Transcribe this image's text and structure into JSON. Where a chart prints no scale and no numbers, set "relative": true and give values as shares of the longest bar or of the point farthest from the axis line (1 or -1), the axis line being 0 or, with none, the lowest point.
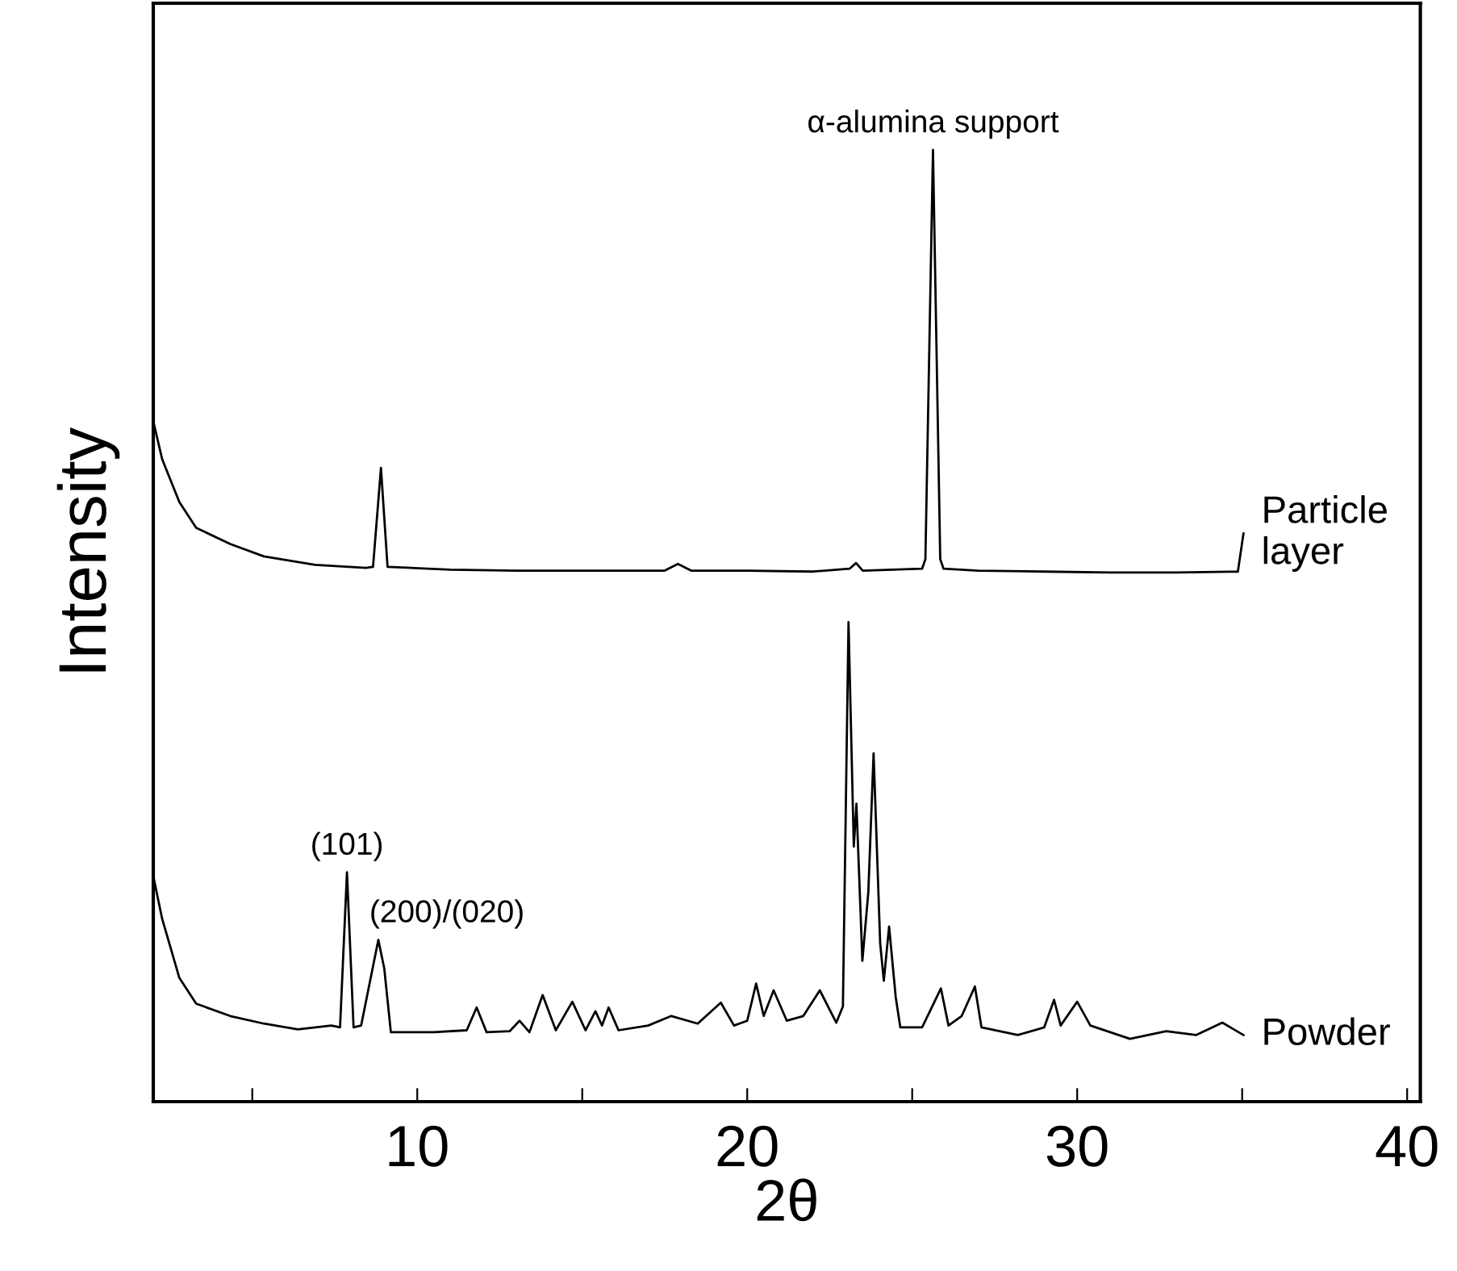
{
  "chart_data": {
    "type": "line",
    "relative": true,
    "xlabel": "2θ",
    "ylabel": "Intensity",
    "xlim": [
      2,
      40.4
    ],
    "xticks": [
      {
        "value": 5,
        "label": null
      },
      10,
      {
        "value": 15,
        "label": null
      },
      20,
      {
        "value": 25,
        "label": null
      },
      30,
      {
        "value": 35,
        "label": null
      },
      40
    ],
    "tick_labels": "x",
    "grid": false,
    "marker": "none",
    "line_style": "solid",
    "series": [
      {
        "name": "Particle\nlayer",
        "color": "#000000",
        "x": [
          2.0,
          2.27,
          2.79,
          3.3,
          4.33,
          5.35,
          6.9,
          8.44,
          8.66,
          8.9,
          9.1,
          11.0,
          13.0,
          15.0,
          17.5,
          17.9,
          18.3,
          20.0,
          22.0,
          23.1,
          23.3,
          23.5,
          25.3,
          25.4,
          25.63,
          25.85,
          25.95,
          27.0,
          29.0,
          31.0,
          33.0,
          34.87,
          35.04
        ],
        "values": [
          0.715,
          0.675,
          0.63,
          0.603,
          0.586,
          0.573,
          0.564,
          0.561,
          0.562,
          0.666,
          0.562,
          0.559,
          0.558,
          0.558,
          0.558,
          0.565,
          0.558,
          0.558,
          0.557,
          0.56,
          0.566,
          0.558,
          0.56,
          0.57,
          1.0,
          0.57,
          0.56,
          0.558,
          0.557,
          0.556,
          0.556,
          0.557,
          0.597
        ]
      },
      {
        "name": "Powder",
        "color": "#000000",
        "x": [
          2.0,
          2.27,
          2.79,
          3.3,
          4.33,
          5.35,
          6.38,
          7.4,
          7.66,
          7.87,
          8.07,
          8.3,
          8.82,
          9.0,
          9.2,
          10.5,
          11.5,
          11.8,
          12.1,
          12.8,
          13.1,
          13.4,
          13.8,
          14.2,
          14.7,
          15.1,
          15.4,
          15.6,
          15.8,
          16.1,
          17.0,
          17.7,
          18.5,
          19.2,
          19.6,
          20.0,
          20.27,
          20.5,
          20.8,
          21.2,
          21.7,
          22.2,
          22.7,
          22.9,
          23.07,
          23.23,
          23.31,
          23.49,
          23.67,
          23.83,
          24.03,
          24.14,
          24.3,
          24.5,
          24.64,
          25.3,
          25.87,
          26.1,
          26.5,
          26.9,
          27.1,
          28.2,
          29.0,
          29.3,
          29.5,
          30.0,
          30.4,
          31.6,
          32.7,
          33.6,
          34.4,
          35.04
        ],
        "values": [
          0.237,
          0.192,
          0.13,
          0.103,
          0.09,
          0.082,
          0.076,
          0.08,
          0.078,
          0.241,
          0.078,
          0.08,
          0.17,
          0.14,
          0.073,
          0.073,
          0.075,
          0.099,
          0.073,
          0.074,
          0.085,
          0.073,
          0.112,
          0.075,
          0.105,
          0.075,
          0.095,
          0.08,
          0.099,
          0.075,
          0.08,
          0.09,
          0.082,
          0.104,
          0.08,
          0.085,
          0.124,
          0.09,
          0.117,
          0.085,
          0.09,
          0.117,
          0.083,
          0.1,
          0.504,
          0.268,
          0.313,
          0.148,
          0.22,
          0.366,
          0.166,
          0.127,
          0.184,
          0.11,
          0.078,
          0.078,
          0.119,
          0.08,
          0.09,
          0.121,
          0.078,
          0.07,
          0.078,
          0.107,
          0.08,
          0.105,
          0.08,
          0.066,
          0.074,
          0.07,
          0.083,
          0.07
        ]
      }
    ],
    "annotations": [
      {
        "text": "α-alumina support",
        "x": 25.63,
        "y": 1.0
      },
      {
        "text": "(101)",
        "x": 7.87,
        "y": 0.241
      },
      {
        "text": "(200)/(020)",
        "x": 8.82,
        "y": 0.17
      }
    ]
  }
}
